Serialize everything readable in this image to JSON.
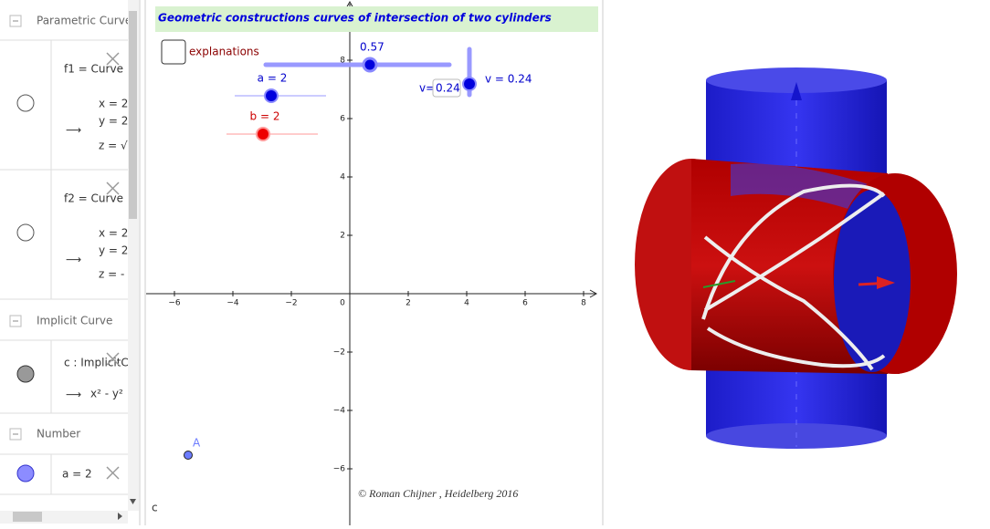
{
  "algebra": {
    "sections": [
      {
        "header": "Parametric Curve",
        "items": [
          {
            "name": "f1 = Curve",
            "lines": [
              "x = 2",
              "y = 2",
              "z = √"
            ]
          },
          {
            "name": "f2 = Curve",
            "lines": [
              "x = 2",
              "y = 2",
              "z = -"
            ]
          }
        ]
      },
      {
        "header": "Implicit Curve",
        "items": [
          {
            "name": "c : ImplicitC",
            "lines": [
              "x² - y²"
            ]
          }
        ]
      },
      {
        "header": "Number",
        "items": [
          {
            "name": "a = 2"
          }
        ]
      }
    ]
  },
  "graphics": {
    "title": "Geometric constructions curves of intersection of two cylinders",
    "checkbox": "explanations",
    "sliders": [
      "0.57",
      "a = 2",
      "b = 2",
      "v = 0.24"
    ],
    "input": {
      "label": "v=",
      "value": "0.24"
    },
    "xticks": [
      {
        "value": -6,
        "label": "−6"
      },
      {
        "value": -4,
        "label": "−4"
      },
      {
        "value": -2,
        "label": "−2"
      },
      0,
      2,
      4,
      6,
      8
    ],
    "yticks": [
      {
        "value": -6,
        "label": "−6"
      },
      {
        "value": -4,
        "label": "−4"
      },
      {
        "value": -2,
        "label": "−2"
      },
      2,
      4,
      6,
      8
    ],
    "point": "A",
    "curve_label": "c",
    "credit": "© Roman Chijner , Heidelberg 2016"
  }
}
